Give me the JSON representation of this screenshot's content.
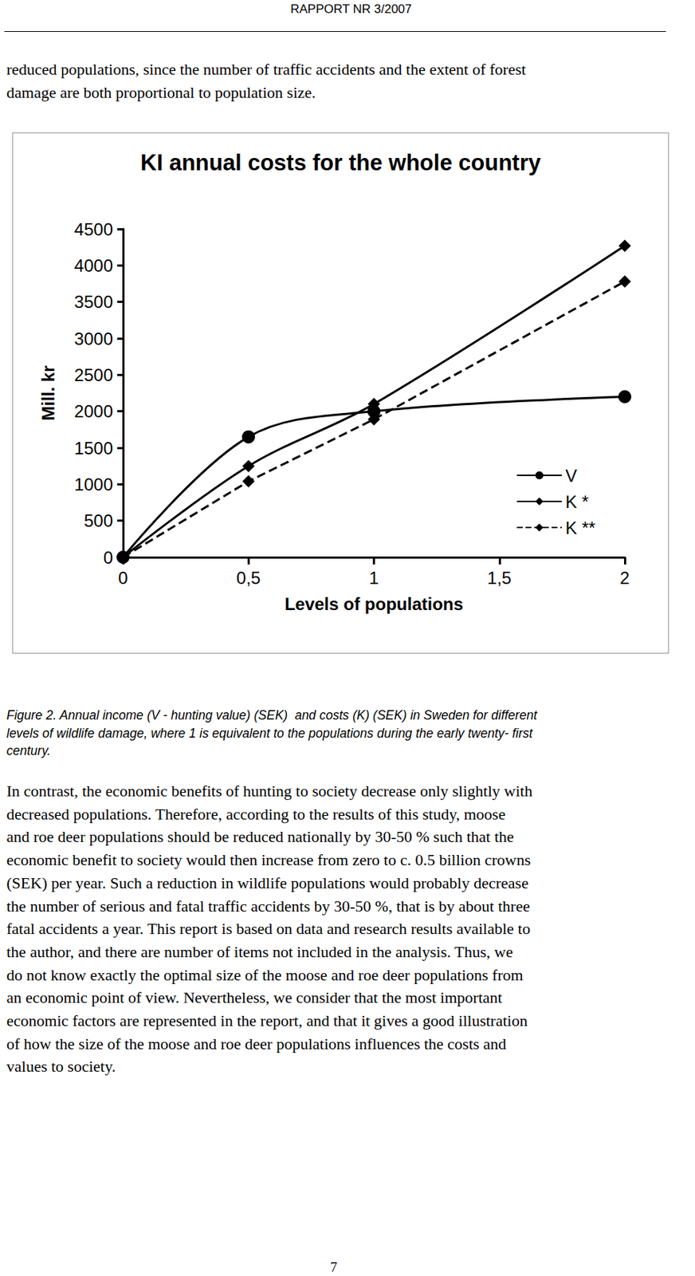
{
  "header": "RAPPORT NR 3/2007",
  "text_top": [
    "reduced populations, since the number of traffic accidents and the extent of forest",
    "damage are both proportional to population size."
  ],
  "chart_data": {
    "type": "line",
    "title": "KI annual costs for the whole country",
    "x_label": "Levels of populations",
    "y_label": "Mill. kr",
    "x": [
      0,
      0.5,
      1,
      2
    ],
    "series": [
      {
        "name": "V",
        "color": "#000000",
        "marker": "circle",
        "line_style": "solid",
        "values": [
          0,
          1650,
          2000,
          2200
        ]
      },
      {
        "name": "K *",
        "color": "#000000",
        "marker": "diamond",
        "line_style": "solid",
        "values": [
          0,
          1250,
          2100,
          4270
        ]
      },
      {
        "name": "K **",
        "color": "#000000",
        "marker": "diamond",
        "line_style": "dashed",
        "values": [
          0,
          1040,
          1890,
          3780
        ]
      }
    ],
    "xlim": [
      0,
      2
    ],
    "xticks": [
      0,
      {
        "value": 0.5,
        "label": "0,5"
      },
      1,
      {
        "value": 1.5,
        "label": "1,5"
      },
      2
    ],
    "ylim": [
      0,
      4500
    ],
    "yticks": [
      0,
      500,
      1000,
      1500,
      2000,
      2500,
      3000,
      3500,
      4000,
      4500
    ],
    "grid": false,
    "legend": "lower right"
  },
  "caption": [
    "Figure 2. Annual income (V - hunting value) (SEK)  and costs (K) (SEK) in Sweden for different",
    "levels of wildlife damage, where 1 is equivalent to the populations during the early twenty- first",
    "century."
  ],
  "text_bottom": [
    "In contrast, the economic benefits of hunting to society decrease only slightly with",
    "decreased populations. Therefore, according to the results of this study, moose",
    "and roe deer populations should be reduced nationally by 30-50 % such that the",
    "economic benefit to society would then increase from zero to c. 0.5 billion crowns",
    "(SEK) per year. Such a reduction in wildlife populations would probably decrease",
    "the number of serious and fatal traffic accidents by 30-50 %, that is by about three",
    "fatal accidents a year. This report is based on data and research results available to",
    "the author, and there are number of items not included in the analysis. Thus, we",
    "do not know exactly the optimal size of the moose and roe deer populations from",
    "an economic point of view. Nevertheless, we consider that the most important",
    "economic factors are represented in the report, and that it gives a good illustration",
    "of how the size of the moose and roe deer populations influences the costs and",
    "values to society."
  ],
  "page_number": "7"
}
